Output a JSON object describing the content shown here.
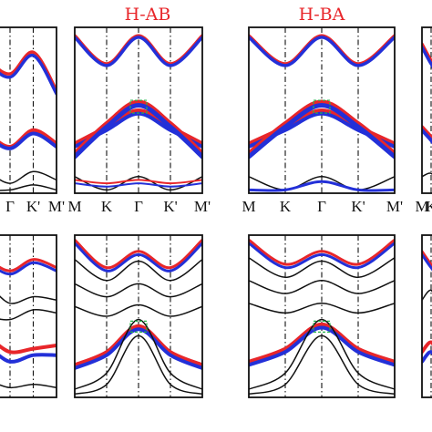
{
  "chart_data": {
    "type": "line",
    "description": "Electronic band structures for H-AB and H-BA stackings (two rows), plotted along M-K-Gamma-K'-M'. Band colours distinguish spin/valley character.",
    "titles": [
      "H-AB",
      "H-BA"
    ],
    "x": {
      "ticks": [
        "M",
        "K",
        "Γ",
        "K'",
        "M'"
      ],
      "positions": [
        0,
        1,
        2,
        3,
        4
      ]
    },
    "ylim": [
      0,
      1
    ],
    "colors": {
      "up": "#e8262a",
      "down": "#2330d8",
      "neutral": "#111111",
      "title": "#e8262a",
      "highlight": "#27b34a"
    },
    "panels": [
      {
        "id": "top-left-partial",
        "bands": [
          {
            "color": "up",
            "weight": 3.5,
            "y": [
              0.86,
              0.8,
              0.72,
              0.85,
              0.62
            ]
          },
          {
            "color": "down",
            "weight": 3.5,
            "y": [
              0.86,
              0.78,
              0.7,
              0.83,
              0.6
            ]
          },
          {
            "color": "up",
            "weight": 4,
            "y": [
              0.42,
              0.36,
              0.28,
              0.38,
              0.3
            ]
          },
          {
            "color": "down",
            "weight": 4,
            "y": [
              0.4,
              0.34,
              0.27,
              0.36,
              0.28
            ]
          },
          {
            "color": "neutral",
            "weight": 1.5,
            "y": [
              0.1,
              0.12,
              0.06,
              0.13,
              0.08
            ]
          },
          {
            "color": "neutral",
            "weight": 1.5,
            "y": [
              0.04,
              0.02,
              0.02,
              0.05,
              0.02
            ]
          }
        ]
      },
      {
        "id": "top-H-AB",
        "bands": [
          {
            "color": "up",
            "weight": 3.5,
            "y": [
              0.95,
              0.78,
              0.95,
              0.78,
              0.95
            ]
          },
          {
            "color": "down",
            "weight": 3.5,
            "y": [
              0.94,
              0.77,
              0.94,
              0.77,
              0.94
            ]
          },
          {
            "color": "up",
            "weight": 4,
            "y": [
              0.3,
              0.4,
              0.5,
              0.4,
              0.3
            ]
          },
          {
            "color": "down",
            "weight": 4,
            "y": [
              0.28,
              0.38,
              0.48,
              0.38,
              0.28
            ]
          },
          {
            "color": "up",
            "weight": 5,
            "y": [
              0.24,
              0.42,
              0.55,
              0.42,
              0.24
            ]
          },
          {
            "color": "down",
            "weight": 5,
            "y": [
              0.22,
              0.4,
              0.53,
              0.4,
              0.22
            ]
          },
          {
            "color": "neutral",
            "weight": 1.5,
            "y": [
              0.1,
              0.02,
              0.1,
              0.02,
              0.1
            ]
          },
          {
            "color": "up",
            "weight": 2,
            "y": [
              0.08,
              0.06,
              0.08,
              0.06,
              0.08
            ]
          },
          {
            "color": "down",
            "weight": 2,
            "y": [
              0.06,
              0.04,
              0.06,
              0.04,
              0.06
            ]
          }
        ]
      },
      {
        "id": "top-H-BA",
        "bands": [
          {
            "color": "up",
            "weight": 3.5,
            "y": [
              0.95,
              0.78,
              0.95,
              0.78,
              0.95
            ]
          },
          {
            "color": "down",
            "weight": 3.5,
            "y": [
              0.94,
              0.77,
              0.94,
              0.77,
              0.94
            ]
          },
          {
            "color": "up",
            "weight": 4,
            "y": [
              0.3,
              0.4,
              0.5,
              0.4,
              0.3
            ]
          },
          {
            "color": "down",
            "weight": 4,
            "y": [
              0.28,
              0.38,
              0.48,
              0.38,
              0.28
            ]
          },
          {
            "color": "up",
            "weight": 5,
            "y": [
              0.24,
              0.42,
              0.55,
              0.42,
              0.24
            ]
          },
          {
            "color": "down",
            "weight": 5,
            "y": [
              0.22,
              0.4,
              0.53,
              0.4,
              0.22
            ]
          },
          {
            "color": "neutral",
            "weight": 1.5,
            "y": [
              0.1,
              0.02,
              0.1,
              0.02,
              0.1
            ]
          },
          {
            "color": "down",
            "weight": 3,
            "y": [
              0.02,
              0.02,
              0.07,
              0.02,
              0.02
            ]
          }
        ]
      },
      {
        "id": "top-right-partial",
        "bands": [
          {
            "color": "up",
            "weight": 3.5,
            "y": [
              0.9,
              0.8,
              0.72,
              0.8,
              0.9
            ]
          },
          {
            "color": "down",
            "weight": 3.5,
            "y": [
              0.88,
              0.78,
              0.7,
              0.78,
              0.88
            ]
          },
          {
            "color": "up",
            "weight": 4,
            "y": [
              0.4,
              0.34,
              0.28,
              0.34,
              0.4
            ]
          },
          {
            "color": "down",
            "weight": 4,
            "y": [
              0.38,
              0.32,
              0.26,
              0.32,
              0.38
            ]
          },
          {
            "color": "neutral",
            "weight": 1.5,
            "y": [
              0.1,
              0.12,
              0.06,
              0.12,
              0.1
            ]
          }
        ]
      },
      {
        "id": "bottom-left-partial",
        "bands": [
          {
            "color": "up",
            "weight": 3,
            "y": [
              0.92,
              0.85,
              0.78,
              0.85,
              0.8
            ]
          },
          {
            "color": "down",
            "weight": 3,
            "y": [
              0.9,
              0.83,
              0.76,
              0.83,
              0.78
            ]
          },
          {
            "color": "neutral",
            "weight": 1.5,
            "y": [
              0.62,
              0.68,
              0.58,
              0.62,
              0.6
            ]
          },
          {
            "color": "neutral",
            "weight": 1.5,
            "y": [
              0.54,
              0.5,
              0.48,
              0.54,
              0.52
            ]
          },
          {
            "color": "up",
            "weight": 4,
            "y": [
              0.3,
              0.36,
              0.28,
              0.3,
              0.32
            ]
          },
          {
            "color": "down",
            "weight": 4,
            "y": [
              0.24,
              0.3,
              0.22,
              0.26,
              0.26
            ]
          },
          {
            "color": "neutral",
            "weight": 1.5,
            "y": [
              0.08,
              0.1,
              0.06,
              0.08,
              0.06
            ]
          }
        ]
      },
      {
        "id": "bottom-H-AB",
        "bands": [
          {
            "color": "up",
            "weight": 3,
            "y": [
              0.97,
              0.8,
              0.9,
              0.8,
              0.97
            ]
          },
          {
            "color": "down",
            "weight": 3,
            "y": [
              0.95,
              0.78,
              0.88,
              0.78,
              0.95
            ]
          },
          {
            "color": "neutral",
            "weight": 1.5,
            "y": [
              0.85,
              0.72,
              0.84,
              0.72,
              0.85
            ]
          },
          {
            "color": "neutral",
            "weight": 1.5,
            "y": [
              0.7,
              0.62,
              0.7,
              0.62,
              0.7
            ]
          },
          {
            "color": "neutral",
            "weight": 1.5,
            "y": [
              0.56,
              0.5,
              0.57,
              0.5,
              0.56
            ]
          },
          {
            "color": "up",
            "weight": 4,
            "y": [
              0.2,
              0.28,
              0.44,
              0.28,
              0.2
            ]
          },
          {
            "color": "down",
            "weight": 4,
            "y": [
              0.18,
              0.26,
              0.42,
              0.26,
              0.18
            ]
          },
          {
            "color": "neutral",
            "weight": 1.5,
            "y": [
              0.05,
              0.15,
              0.48,
              0.15,
              0.05
            ]
          },
          {
            "color": "neutral",
            "weight": 1.5,
            "y": [
              0.02,
              0.08,
              0.38,
              0.08,
              0.02
            ]
          }
        ]
      },
      {
        "id": "bottom-H-BA",
        "bands": [
          {
            "color": "up",
            "weight": 3,
            "y": [
              0.97,
              0.82,
              0.9,
              0.82,
              0.97
            ]
          },
          {
            "color": "down",
            "weight": 3,
            "y": [
              0.95,
              0.8,
              0.88,
              0.8,
              0.95
            ]
          },
          {
            "color": "neutral",
            "weight": 1.5,
            "y": [
              0.86,
              0.74,
              0.84,
              0.74,
              0.86
            ]
          },
          {
            "color": "neutral",
            "weight": 1.5,
            "y": [
              0.72,
              0.64,
              0.72,
              0.64,
              0.72
            ]
          },
          {
            "color": "neutral",
            "weight": 1.5,
            "y": [
              0.58,
              0.52,
              0.58,
              0.52,
              0.58
            ]
          },
          {
            "color": "up",
            "weight": 4,
            "y": [
              0.22,
              0.3,
              0.45,
              0.3,
              0.22
            ]
          },
          {
            "color": "down",
            "weight": 4,
            "y": [
              0.2,
              0.28,
              0.43,
              0.28,
              0.2
            ]
          },
          {
            "color": "neutral",
            "weight": 1.5,
            "y": [
              0.05,
              0.15,
              0.48,
              0.15,
              0.05
            ]
          },
          {
            "color": "neutral",
            "weight": 1.5,
            "y": [
              0.02,
              0.08,
              0.38,
              0.08,
              0.02
            ]
          }
        ]
      },
      {
        "id": "bottom-right-partial",
        "bands": [
          {
            "color": "up",
            "weight": 3,
            "y": [
              0.9,
              0.82,
              0.76,
              0.82,
              0.9
            ]
          },
          {
            "color": "down",
            "weight": 3,
            "y": [
              0.88,
              0.8,
              0.74,
              0.8,
              0.88
            ]
          },
          {
            "color": "neutral",
            "weight": 1.5,
            "y": [
              0.6,
              0.66,
              0.56,
              0.66,
              0.6
            ]
          },
          {
            "color": "up",
            "weight": 4,
            "y": [
              0.28,
              0.34,
              0.26,
              0.34,
              0.28
            ]
          },
          {
            "color": "down",
            "weight": 4,
            "y": [
              0.22,
              0.28,
              0.2,
              0.28,
              0.22
            ]
          }
        ]
      }
    ]
  }
}
